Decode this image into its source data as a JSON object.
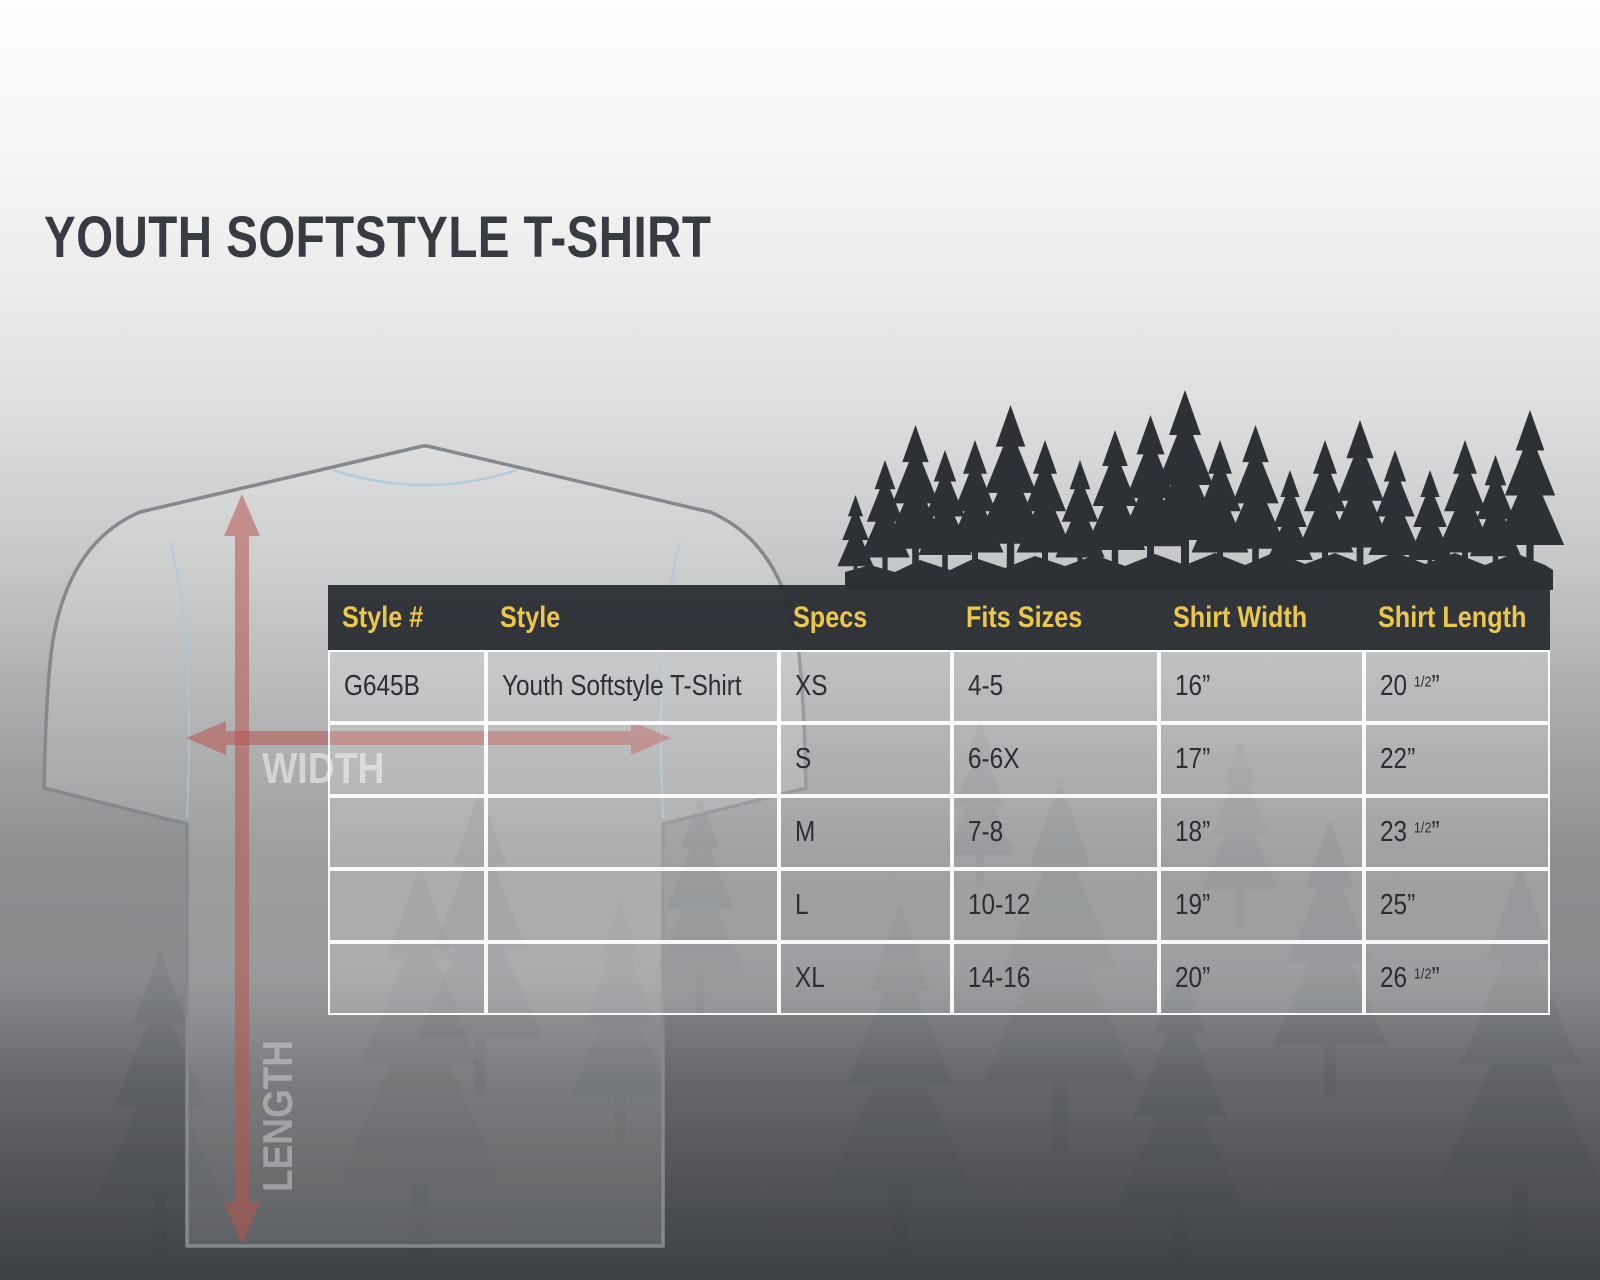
{
  "page": {
    "title": "YOUTH SOFTSTYLE T-SHIRT"
  },
  "diagram": {
    "width_label": "WIDTH",
    "length_label": "LENGTH",
    "shirt_outline_icon": "t-shirt-back-view",
    "arrow_icons": [
      "vertical-length-arrow",
      "horizontal-width-arrow"
    ]
  },
  "table": {
    "headers": [
      "Style #",
      "Style",
      "Specs",
      "Fits Sizes",
      "Shirt Width",
      "Shirt Length"
    ],
    "inch_mark": "”",
    "rows": [
      {
        "style_num": "G645B",
        "style": "Youth Softstyle T-Shirt",
        "spec": "XS",
        "fits": "4-5",
        "width": {
          "main": "16",
          "frac": ""
        },
        "length": {
          "main": "20",
          "frac": "1/2"
        }
      },
      {
        "style_num": "",
        "style": "",
        "spec": "S",
        "fits": "6-6X",
        "width": {
          "main": "17",
          "frac": ""
        },
        "length": {
          "main": "22",
          "frac": ""
        }
      },
      {
        "style_num": "",
        "style": "",
        "spec": "M",
        "fits": "7-8",
        "width": {
          "main": "18",
          "frac": ""
        },
        "length": {
          "main": "23",
          "frac": "1/2"
        }
      },
      {
        "style_num": "",
        "style": "",
        "spec": "L",
        "fits": "10-12",
        "width": {
          "main": "19",
          "frac": ""
        },
        "length": {
          "main": "25",
          "frac": ""
        }
      },
      {
        "style_num": "",
        "style": "",
        "spec": "XL",
        "fits": "14-16",
        "width": {
          "main": "20",
          "frac": ""
        },
        "length": {
          "main": "26",
          "frac": "1/2"
        }
      }
    ]
  },
  "chart_data": {
    "type": "table",
    "title": "YOUTH SOFTSTYLE T-SHIRT",
    "columns": [
      "Style #",
      "Style",
      "Specs",
      "Fits Sizes",
      "Shirt Width",
      "Shirt Length"
    ],
    "rows": [
      [
        "G645B",
        "Youth Softstyle T-Shirt",
        "XS",
        "4-5",
        "16”",
        "20 1/2”"
      ],
      [
        "",
        "",
        "S",
        "6-6X",
        "17”",
        "22”"
      ],
      [
        "",
        "",
        "M",
        "7-8",
        "18”",
        "23 1/2”"
      ],
      [
        "",
        "",
        "L",
        "10-12",
        "19”",
        "25”"
      ],
      [
        "",
        "",
        "XL",
        "14-16",
        "20”",
        "26 1/2”"
      ]
    ]
  },
  "colors": {
    "accent_yellow": "#ecc74e",
    "header_bg": "#2c3035",
    "title_text": "#383c42",
    "cell_text": "#2b2e33",
    "arrow_red": "#b6584f",
    "forest_silhouette": "#2d3136",
    "shirt_outline": "#85888c",
    "seam_blue": "#aac9de"
  }
}
